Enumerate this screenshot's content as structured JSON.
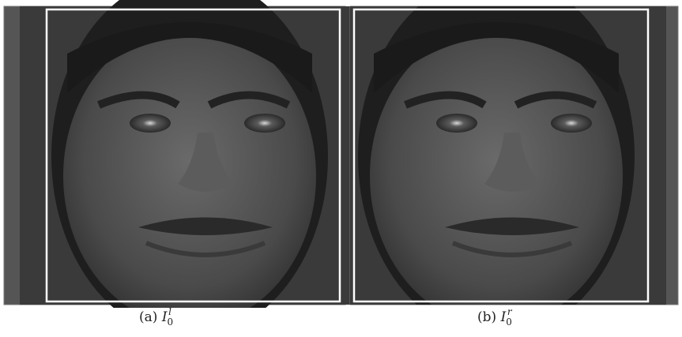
{
  "figures": [
    {
      "tag": "(a)",
      "symbol": "I",
      "subscript": "0",
      "superscript": "l"
    },
    {
      "tag": "(b)",
      "symbol": "I",
      "subscript": "0",
      "superscript": "r"
    }
  ]
}
